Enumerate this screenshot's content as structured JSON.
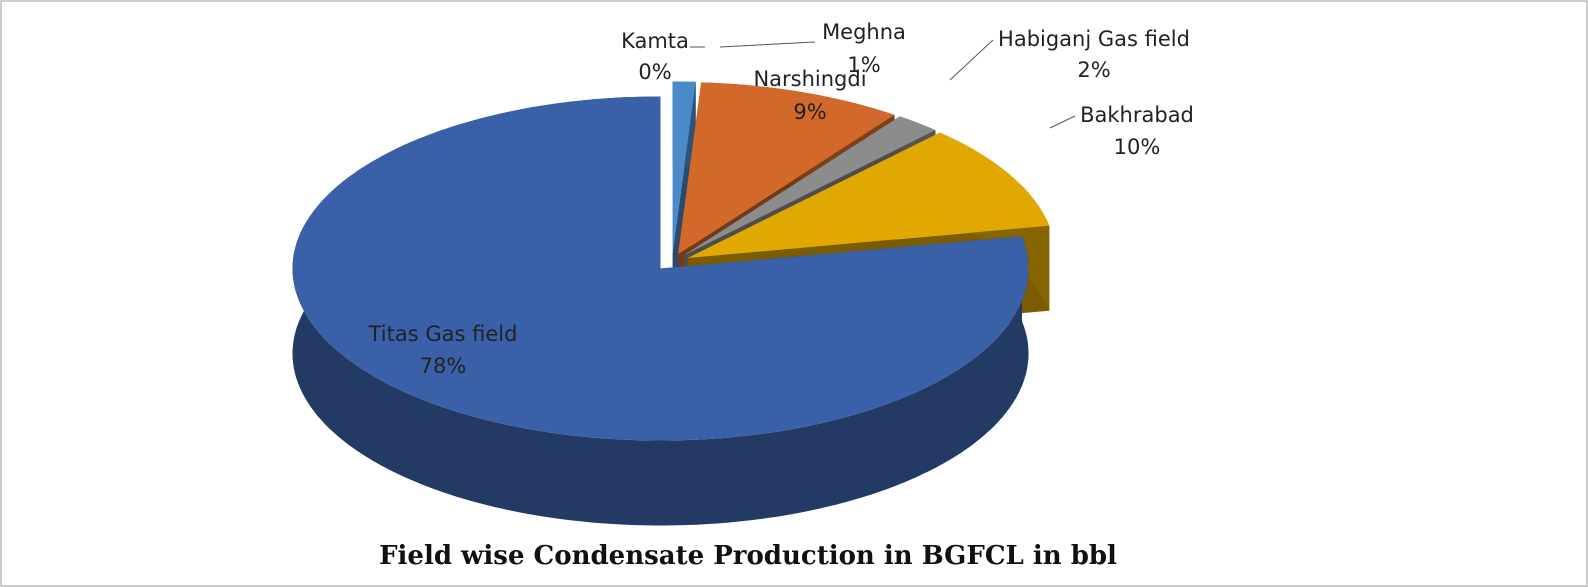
{
  "chart_data": {
    "type": "pie3d",
    "title": "Field wise Condensate Production in BGFCL in bbl",
    "categories": [
      "Kamta",
      "Meghna",
      "Narshingdi",
      "Habiganj Gas field",
      "Bakhrabad",
      "Titas Gas field"
    ],
    "values": [
      0,
      1,
      9,
      2,
      10,
      78
    ],
    "value_labels": [
      "0%",
      "1%",
      "9%",
      "2%",
      "10%",
      "78%"
    ],
    "colors": [
      "#a0b8d8",
      "#4a8ac8",
      "#d2692a",
      "#8c8c8c",
      "#e0a800",
      "#3a60a8"
    ]
  }
}
